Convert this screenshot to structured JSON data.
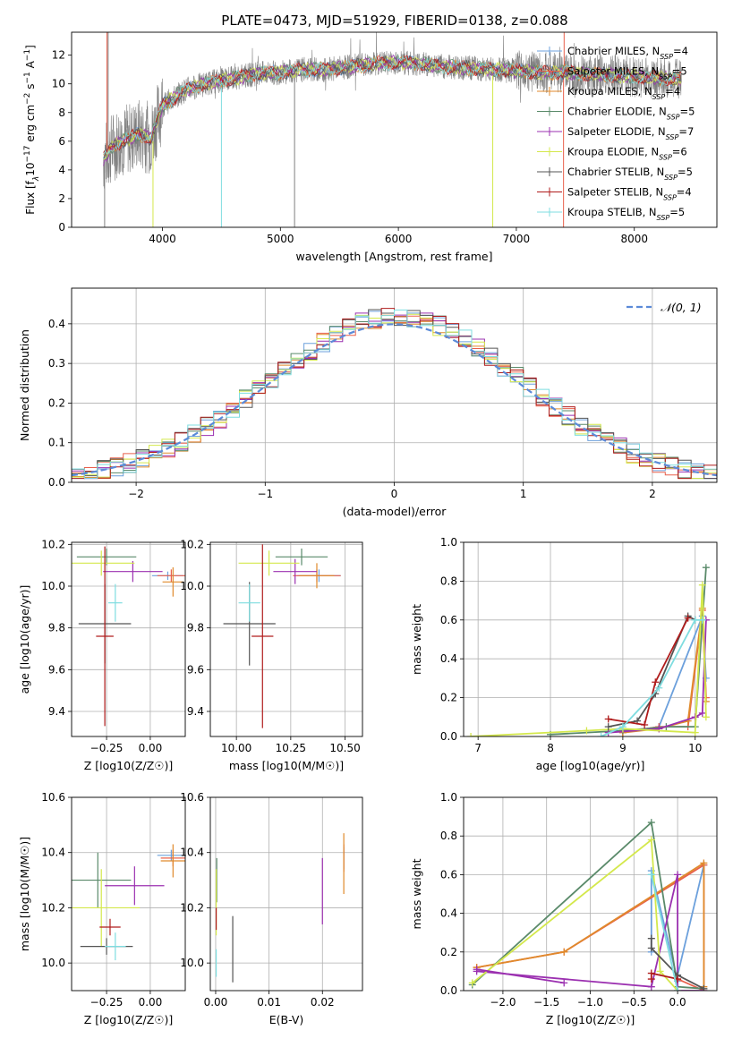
{
  "figure_title": "PLATE=0473, MJD=51929, FIBERID=0138, z=0.088",
  "models": [
    {
      "name": "Chabrier MILES, N<tspan baseline-shift='sub' font-size='8'>SSP</tspan>=4",
      "label_main": "Chabrier MILES, N",
      "label_sub": "SSP",
      "label_end": "=4",
      "color": "#6ca0dc"
    },
    {
      "name": "Salpeter MILES",
      "label_main": "Salpeter MILES, N",
      "label_sub": "SSP",
      "label_end": "=5",
      "color": "#e8604c"
    },
    {
      "name": "Kroupa MILES",
      "label_main": "Kroupa MILES, N",
      "label_sub": "SSP",
      "label_end": "=4",
      "color": "#e08a2c"
    },
    {
      "name": "Chabrier ELODIE",
      "label_main": "Chabrier ELODIE, N",
      "label_sub": "SSP",
      "label_end": "=5",
      "color": "#5a8a6a"
    },
    {
      "name": "Salpeter ELODIE",
      "label_main": "Salpeter ELODIE, N",
      "label_sub": "SSP",
      "label_end": "=7",
      "color": "#9b30b0"
    },
    {
      "name": "Kroupa ELODIE",
      "label_main": "Kroupa ELODIE, N",
      "label_sub": "SSP",
      "label_end": "=6",
      "color": "#d4e84c"
    },
    {
      "name": "Chabrier STELIB",
      "label_main": "Chabrier STELIB, N",
      "label_sub": "SSP",
      "label_end": "=5",
      "color": "#555555"
    },
    {
      "name": "Salpeter STELIB",
      "label_main": "Salpeter STELIB, N",
      "label_sub": "SSP",
      "label_end": "=4",
      "color": "#b01c1c"
    },
    {
      "name": "Kroupa STELIB",
      "label_main": "Kroupa STELIB, N",
      "label_sub": "SSP",
      "label_end": "=5",
      "color": "#7fdde0"
    }
  ],
  "chart_data": [
    {
      "id": "spectrum",
      "type": "line",
      "title": "",
      "xlabel": "wavelength [Angstrom, rest frame]",
      "ylabel_parts": [
        "Flux [f",
        "λ",
        "10",
        "−17",
        " erg cm",
        "−2",
        " s",
        "−1",
        " A",
        "−1",
        "]"
      ],
      "xlim": [
        3230,
        8700
      ],
      "ylim": [
        0,
        13.6
      ],
      "xticks": [
        4000,
        5000,
        6000,
        7000,
        8000
      ],
      "yticks": [
        0,
        2,
        4,
        6,
        8,
        10,
        12
      ],
      "continuum": {
        "x": [
          3500,
          3600,
          3800,
          3900,
          4000,
          4200,
          4400,
          4600,
          4800,
          5000,
          5200,
          5400,
          5600,
          5800,
          6000,
          6200,
          6400,
          6600,
          6800,
          7000,
          7200,
          7400,
          7600,
          7800,
          8000,
          8200,
          8400
        ],
        "y": [
          4.8,
          5.8,
          6.5,
          6.2,
          8.5,
          9.6,
          10.1,
          10.4,
          10.7,
          10.8,
          11.0,
          11.0,
          11.2,
          11.4,
          11.5,
          11.4,
          11.2,
          11.1,
          11.0,
          10.9,
          10.8,
          10.8,
          10.7,
          10.6,
          10.5,
          10.4,
          10.3
        ]
      }
    },
    {
      "id": "residuals",
      "type": "histogram",
      "xlabel": "(data-model)/error",
      "ylabel": "Normed distribution",
      "xlim": [
        -2.5,
        2.5
      ],
      "ylim": [
        0,
        0.49
      ],
      "xticks": [
        -2,
        -1,
        0,
        1,
        2
      ],
      "yticks": [
        0.0,
        0.1,
        0.2,
        0.3,
        0.4
      ],
      "grid": true,
      "legend_label": "𝒩(0, 1)",
      "legend_position": "top-right",
      "bin_width": 0.1,
      "reference_color": "#5b8ad8"
    },
    {
      "id": "age-vs-Z",
      "type": "errorbar",
      "xlabel": "Z [log10(Z/Z☉)]",
      "ylabel": "age  [log10(age/yr)]",
      "xlim": [
        -0.45,
        0.2
      ],
      "ylim": [
        9.28,
        10.21
      ],
      "xticks": [
        -0.25,
        0.0
      ],
      "yticks": [
        9.4,
        9.6,
        9.8,
        10.0,
        10.2
      ],
      "points": [
        {
          "m": 0,
          "x": 0.1,
          "y": 10.05,
          "xe": 0.09,
          "ye": 0.02
        },
        {
          "m": 1,
          "x": 0.12,
          "y": 10.05,
          "xe": 0.08,
          "ye": 0.03
        },
        {
          "m": 2,
          "x": 0.13,
          "y": 10.02,
          "xe": 0.06,
          "ye": 0.07
        },
        {
          "m": 3,
          "x": -0.25,
          "y": 10.14,
          "xe": 0.17,
          "ye": 0.04
        },
        {
          "m": 4,
          "x": -0.1,
          "y": 10.07,
          "xe": 0.17,
          "ye": 0.05
        },
        {
          "m": 5,
          "x": -0.28,
          "y": 10.11,
          "xe": 0.19,
          "ye": 0.06
        },
        {
          "m": 6,
          "x": -0.26,
          "y": 9.82,
          "xe": 0.15,
          "ye": 0.19
        },
        {
          "m": 7,
          "x": -0.26,
          "y": 9.76,
          "xe": 0.05,
          "ye": 0.43
        },
        {
          "m": 8,
          "x": -0.2,
          "y": 9.92,
          "xe": 0.04,
          "ye": 0.09
        }
      ]
    },
    {
      "id": "age-vs-mass",
      "type": "errorbar",
      "xlabel": "mass [log10(M/M☉)]",
      "xlim": [
        9.88,
        10.58
      ],
      "ylim": [
        9.28,
        10.21
      ],
      "xticks": [
        10.0,
        10.25,
        10.5
      ],
      "yticks": [
        9.4,
        9.6,
        9.8,
        10.0,
        10.2
      ],
      "points": [
        {
          "m": 0,
          "x": 10.38,
          "y": 10.05,
          "xe": 0.1,
          "ye": 0.03
        },
        {
          "m": 1,
          "x": 10.37,
          "y": 10.05,
          "xe": 0.11,
          "ye": 0.03
        },
        {
          "m": 2,
          "x": 10.37,
          "y": 10.05,
          "xe": 0.08,
          "ye": 0.06
        },
        {
          "m": 3,
          "x": 10.3,
          "y": 10.14,
          "xe": 0.12,
          "ye": 0.04
        },
        {
          "m": 4,
          "x": 10.27,
          "y": 10.07,
          "xe": 0.1,
          "ye": 0.06
        },
        {
          "m": 5,
          "x": 10.15,
          "y": 10.11,
          "xe": 0.14,
          "ye": 0.06
        },
        {
          "m": 6,
          "x": 10.06,
          "y": 9.82,
          "xe": 0.12,
          "ye": 0.2
        },
        {
          "m": 7,
          "x": 10.12,
          "y": 9.76,
          "xe": 0.05,
          "ye": 0.44
        },
        {
          "m": 8,
          "x": 10.06,
          "y": 9.92,
          "xe": 0.05,
          "ye": 0.09
        }
      ]
    },
    {
      "id": "weight-vs-age",
      "type": "line",
      "xlabel": "age  [log10(age/yr)]",
      "ylabel": "mass weight",
      "xlim": [
        6.8,
        10.3
      ],
      "ylim": [
        0,
        1.0
      ],
      "xticks": [
        7,
        8,
        9,
        10
      ],
      "yticks": [
        0.0,
        0.2,
        0.4,
        0.6,
        0.8,
        1.0
      ],
      "grid": true,
      "series": [
        {
          "m": 0,
          "x": [
            9.0,
            9.5,
            10.1,
            10.15
          ],
          "y": [
            0.02,
            0.05,
            0.62,
            0.3
          ]
        },
        {
          "m": 1,
          "x": [
            9.0,
            9.5,
            9.9,
            10.1,
            10.15
          ],
          "y": [
            0.02,
            0.05,
            0.05,
            0.65,
            0.2
          ]
        },
        {
          "m": 2,
          "x": [
            9.0,
            9.5,
            9.9,
            10.1,
            10.15
          ],
          "y": [
            0.02,
            0.04,
            0.08,
            0.66,
            0.18
          ]
        },
        {
          "m": 3,
          "x": [
            8.0,
            9.0,
            9.6,
            10.0,
            10.15
          ],
          "y": [
            0.01,
            0.03,
            0.05,
            0.05,
            0.87
          ]
        },
        {
          "m": 4,
          "x": [
            8.8,
            9.5,
            10.0,
            10.1,
            10.15
          ],
          "y": [
            0.02,
            0.04,
            0.1,
            0.12,
            0.6
          ]
        },
        {
          "m": 5,
          "x": [
            6.9,
            8.5,
            9.0,
            10.0,
            10.1,
            10.15
          ],
          "y": [
            0.0,
            0.03,
            0.04,
            0.02,
            0.78,
            0.1
          ]
        },
        {
          "m": 6,
          "x": [
            8.8,
            9.2,
            9.45,
            9.9,
            10.0
          ],
          "y": [
            0.05,
            0.08,
            0.22,
            0.62,
            0.6
          ]
        },
        {
          "m": 7,
          "x": [
            8.8,
            9.3,
            9.45,
            9.9
          ],
          "y": [
            0.09,
            0.06,
            0.28,
            0.61
          ]
        },
        {
          "m": 8,
          "x": [
            8.7,
            9.0,
            9.5,
            10.0,
            10.1
          ],
          "y": [
            0.0,
            0.05,
            0.25,
            0.6,
            0.6
          ]
        }
      ]
    },
    {
      "id": "mass-vs-Z",
      "type": "errorbar",
      "xlabel": "Z [log10(Z/Z☉)]",
      "ylabel": "mass [log10(M/M☉)]",
      "xlim": [
        -0.45,
        0.2
      ],
      "ylim": [
        9.9,
        10.6
      ],
      "xticks": [
        -0.25,
        0.0
      ],
      "yticks": [
        10.0,
        10.2,
        10.4,
        10.6
      ],
      "points": [
        {
          "m": 0,
          "x": 0.12,
          "y": 10.39,
          "xe": 0.08,
          "ye": 0.02
        },
        {
          "m": 1,
          "x": 0.13,
          "y": 10.38,
          "xe": 0.07,
          "ye": 0.03
        },
        {
          "m": 2,
          "x": 0.13,
          "y": 10.37,
          "xe": 0.07,
          "ye": 0.06
        },
        {
          "m": 3,
          "x": -0.3,
          "y": 10.3,
          "xe": 0.19,
          "ye": 0.1
        },
        {
          "m": 4,
          "x": -0.09,
          "y": 10.28,
          "xe": 0.17,
          "ye": 0.07
        },
        {
          "m": 5,
          "x": -0.28,
          "y": 10.2,
          "xe": 0.22,
          "ye": 0.14
        },
        {
          "m": 6,
          "x": -0.25,
          "y": 10.06,
          "xe": 0.15,
          "ye": 0.03
        },
        {
          "m": 7,
          "x": -0.23,
          "y": 10.13,
          "xe": 0.06,
          "ye": 0.03
        },
        {
          "m": 8,
          "x": -0.2,
          "y": 10.06,
          "xe": 0.06,
          "ye": 0.05
        }
      ]
    },
    {
      "id": "mass-vs-ebv",
      "type": "errorbar",
      "xlabel": "E(B-V)",
      "xlim": [
        -0.001,
        0.0275
      ],
      "ylim": [
        9.9,
        10.6
      ],
      "xticks": [
        0.0,
        0.01,
        0.02
      ],
      "yticks": [
        10.0,
        10.2,
        10.4,
        10.6
      ],
      "points": [
        {
          "m": 0,
          "x": 0.024,
          "y": 10.38,
          "xe": 0.0,
          "ye": 0.04
        },
        {
          "m": 1,
          "x": 0.024,
          "y": 10.38,
          "xe": 0.0,
          "ye": 0.05
        },
        {
          "m": 2,
          "x": 0.024,
          "y": 10.36,
          "xe": 0.0,
          "ye": 0.11
        },
        {
          "m": 3,
          "x": 0.0002,
          "y": 10.3,
          "xe": 0.0,
          "ye": 0.08
        },
        {
          "m": 4,
          "x": 0.02,
          "y": 10.26,
          "xe": 0.0,
          "ye": 0.12
        },
        {
          "m": 5,
          "x": 0.0001,
          "y": 10.22,
          "xe": 0.0,
          "ye": 0.12
        },
        {
          "m": 6,
          "x": 0.0032,
          "y": 10.05,
          "xe": 0.0,
          "ye": 0.12
        },
        {
          "m": 7,
          "x": 0.0001,
          "y": 10.16,
          "xe": 0.0,
          "ye": 0.04
        },
        {
          "m": 8,
          "x": 0.0001,
          "y": 10.0,
          "xe": 0.0,
          "ye": 0.05
        }
      ]
    },
    {
      "id": "weight-vs-Z",
      "type": "line",
      "xlabel": "Z [log10(Z/Z☉)]",
      "ylabel": "mass weight",
      "xlim": [
        -2.45,
        0.45
      ],
      "ylim": [
        0,
        1.0
      ],
      "xticks": [
        -2.0,
        -1.5,
        -1.0,
        -0.5,
        0.0
      ],
      "yticks": [
        0.0,
        0.2,
        0.4,
        0.6,
        0.8,
        1.0
      ],
      "grid": true,
      "series": [
        {
          "m": 0,
          "x": [
            -0.3,
            -0.3,
            0.0,
            0.0,
            0.3
          ],
          "y": [
            0.2,
            0.62,
            0.05,
            0.08,
            0.65
          ]
        },
        {
          "m": 1,
          "x": [
            -2.3,
            -1.3,
            0.3,
            0.3,
            0.0
          ],
          "y": [
            0.12,
            0.2,
            0.65,
            0.0,
            0.06
          ]
        },
        {
          "m": 2,
          "x": [
            -2.3,
            -1.3,
            0.3,
            0.3
          ],
          "y": [
            0.12,
            0.2,
            0.66,
            0.02
          ]
        },
        {
          "m": 3,
          "x": [
            -2.35,
            -0.3,
            0.0,
            0.3
          ],
          "y": [
            0.03,
            0.87,
            0.02,
            0.01
          ]
        },
        {
          "m": 4,
          "x": [
            -2.3,
            -0.3,
            0.0,
            0.0,
            0.3
          ],
          "y": [
            0.1,
            0.02,
            0.6,
            0.0,
            0.0
          ]
        },
        {
          "m": 5,
          "x": [
            -2.35,
            -0.3,
            -0.2,
            0.0
          ],
          "y": [
            0.04,
            0.78,
            0.1,
            0.0
          ]
        },
        {
          "m": 6,
          "x": [
            -0.3,
            -0.3,
            0.0,
            0.3
          ],
          "y": [
            0.27,
            0.22,
            0.08,
            0.01
          ]
        },
        {
          "m": 7,
          "x": [
            -0.3,
            -0.3,
            0.0
          ],
          "y": [
            0.06,
            0.09,
            0.06
          ]
        },
        {
          "m": 8,
          "x": [
            -0.3,
            -0.3,
            0.0
          ],
          "y": [
            0.6,
            0.6,
            0.0
          ]
        },
        {
          "m": 4,
          "x": [
            -2.3,
            -1.3
          ],
          "y": [
            0.11,
            0.04
          ]
        }
      ]
    }
  ]
}
